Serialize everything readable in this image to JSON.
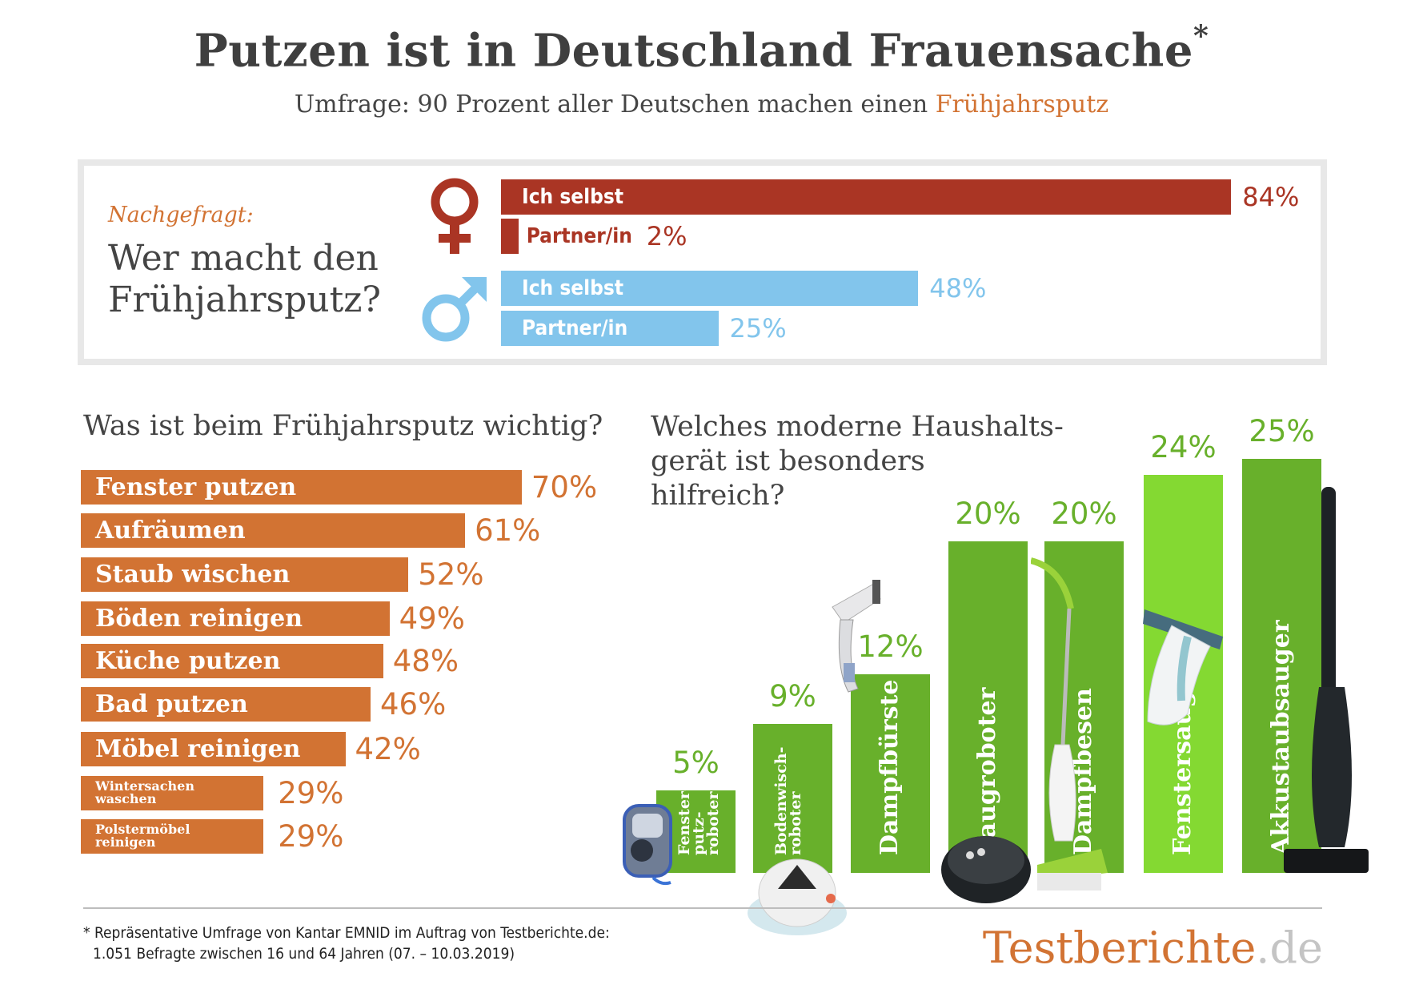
{
  "header": {
    "title": "Putzen ist in Deutschland Frauensache",
    "title_mark": "*",
    "subtitle_prefix": "Umfrage: 90 Prozent aller Deutschen machen einen ",
    "subtitle_accent": "Frühjahrsputz"
  },
  "who_box": {
    "kicker": "Nachgefragt:",
    "question_line1": "Wer macht den",
    "question_line2": "Frühjahrsputz?",
    "female_icon": "female-symbol-icon",
    "male_icon": "male-symbol-icon"
  },
  "colors": {
    "female": "#aa3524",
    "male": "#82c5ec",
    "orange": "#d27333",
    "green": "#68b02b",
    "green_light": "#84d932",
    "text": "#444444"
  },
  "chart_data": [
    {
      "type": "bar",
      "orientation": "horizontal",
      "title": "Wer macht den Frühjahrsputz?",
      "categories": [
        "Ich selbst",
        "Partner/in"
      ],
      "series": [
        {
          "name": "Frauen",
          "values": [
            84,
            2
          ],
          "labels": [
            "84%",
            "2%"
          ]
        },
        {
          "name": "Männer",
          "values": [
            48,
            25
          ],
          "labels": [
            "48%",
            "25%"
          ]
        }
      ],
      "unit": "%",
      "xlim": [
        0,
        100
      ]
    },
    {
      "type": "bar",
      "orientation": "horizontal",
      "title": "Was ist beim Frühjahrsputz wichtig?",
      "categories": [
        "Fenster putzen",
        "Aufräumen",
        "Staub wischen",
        "Böden reinigen",
        "Küche putzen",
        "Bad putzen",
        "Möbel reinigen",
        "Wintersachen waschen",
        "Polstermöbel reinigen"
      ],
      "category_lines": [
        [
          "Fenster putzen"
        ],
        [
          "Aufräumen"
        ],
        [
          "Staub wischen"
        ],
        [
          "Böden reinigen"
        ],
        [
          "Küche putzen"
        ],
        [
          "Bad putzen"
        ],
        [
          "Möbel reinigen"
        ],
        [
          "Wintersachen",
          "waschen"
        ],
        [
          "Polstermöbel",
          "reinigen"
        ]
      ],
      "values": [
        70,
        61,
        52,
        49,
        48,
        46,
        42,
        29,
        29
      ],
      "labels": [
        "70%",
        "61%",
        "52%",
        "49%",
        "48%",
        "46%",
        "42%",
        "29%",
        "29%"
      ],
      "unit": "%"
    },
    {
      "type": "bar",
      "orientation": "vertical",
      "title": "Welches moderne Haushaltsgerät ist besonders hilfreich?",
      "title_lines": [
        "Welches moderne Haushalts-",
        "gerät ist besonders",
        "hilfreich?"
      ],
      "categories": [
        "Fensterputzroboter",
        "Bodenwischroboter",
        "Dampfbürste",
        "Saugroboter",
        "Dampfbesen",
        "Fenstersauger",
        "Akkustaubsauger"
      ],
      "category_lines": [
        "Fenster-\nputz-\nroboter",
        "Bodenwisch-\nroboter",
        "Dampfbürste",
        "Saugroboter",
        "Dampfbesen",
        "Fenstersauger",
        "Akkustaubsauger"
      ],
      "values": [
        5,
        9,
        12,
        20,
        20,
        24,
        25
      ],
      "labels": [
        "5%",
        "9%",
        "12%",
        "20%",
        "20%",
        "24%",
        "25%"
      ],
      "highlight_index": 5,
      "device_icons": [
        "window-robot-icon",
        "mop-robot-icon",
        "steam-brush-icon",
        "vacuum-robot-icon",
        "steam-mop-icon",
        "window-vacuum-icon",
        "stick-vacuum-icon"
      ],
      "unit": "%"
    }
  ],
  "footer": {
    "footnote_line1": "* Repräsentative Umfrage von Kantar EMNID im Auftrag von Testberichte.de:",
    "footnote_line2": "1.051 Befragte zwischen 16 und 64 Jahren (07. – 10.03.2019)",
    "logo_main": "Testberichte",
    "logo_tld": ".de"
  }
}
